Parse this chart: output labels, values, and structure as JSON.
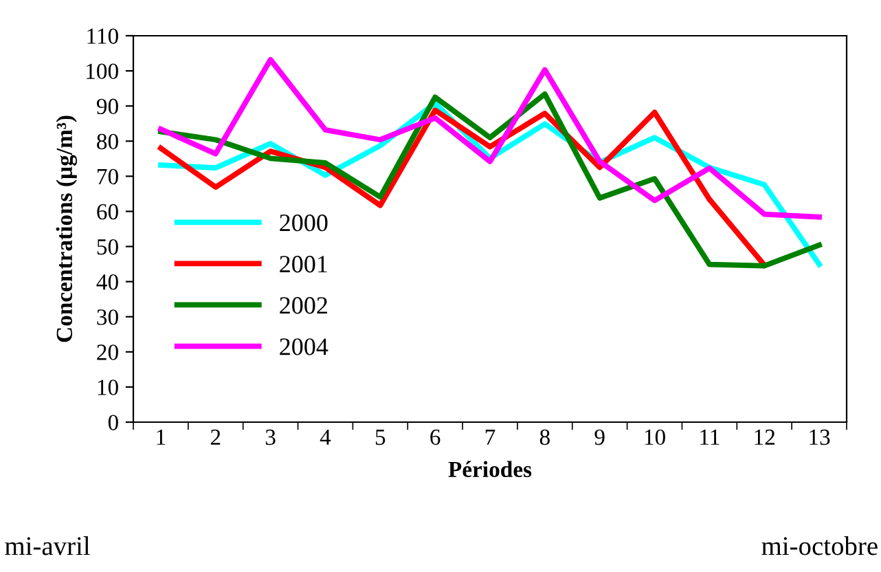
{
  "chart_data": {
    "type": "line",
    "xlabel": "Périodes",
    "ylabel": "Concentrations (µg/m³)",
    "categories": [
      "1",
      "2",
      "3",
      "4",
      "5",
      "6",
      "7",
      "8",
      "9",
      "10",
      "11",
      "12",
      "13"
    ],
    "series": [
      {
        "name": "2000",
        "color": "#00ffff",
        "values": [
          73.2,
          72.4,
          79.3,
          70.3,
          78.7,
          90.8,
          75.1,
          84.9,
          74.0,
          81.0,
          72.5,
          67.6,
          44.9
        ]
      },
      {
        "name": "2001",
        "color": "#ff0000",
        "values": [
          78.0,
          66.9,
          77.1,
          72.5,
          61.7,
          88.8,
          78.4,
          87.9,
          72.5,
          88.2,
          63.4,
          44.7,
          null
        ]
      },
      {
        "name": "2002",
        "color": "#008000",
        "values": [
          82.7,
          80.4,
          75.1,
          73.8,
          64.1,
          92.5,
          81.0,
          93.4,
          63.8,
          69.3,
          44.9,
          44.5,
          50.4
        ]
      },
      {
        "name": "2004",
        "color": "#ff00ff",
        "values": [
          83.4,
          76.4,
          103.2,
          83.2,
          80.4,
          86.6,
          74.2,
          100.3,
          74.2,
          63.1,
          72.3,
          59.2,
          58.4
        ]
      }
    ],
    "ylim": [
      0,
      110
    ],
    "yticks": [
      0,
      10,
      20,
      30,
      40,
      50,
      60,
      70,
      80,
      90,
      100,
      110
    ],
    "grid": false,
    "legend": "left",
    "marker": "none",
    "line_style": "solid",
    "annotations": [
      "mi-avril",
      "mi-octobre"
    ]
  }
}
